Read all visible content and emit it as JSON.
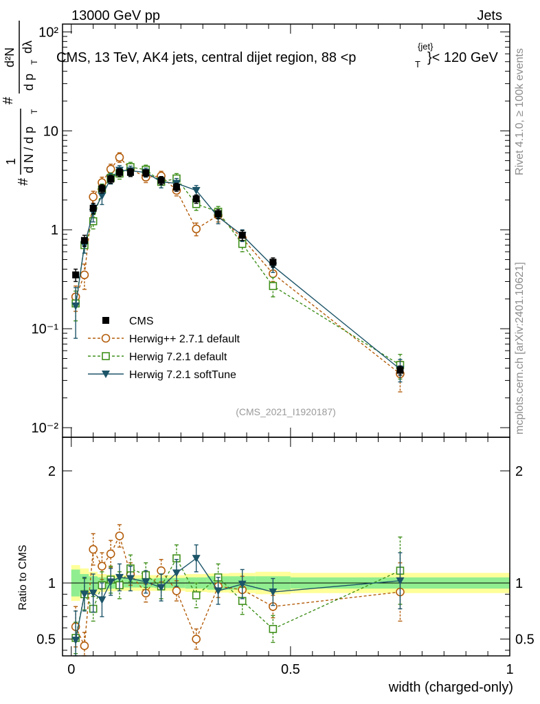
{
  "header": {
    "left": "13000 GeV pp",
    "right": "Jets",
    "title_main": "CMS, 13 TeV, AK4 jets, central dijet region, 88 <p",
    "title_sup": "{jet}",
    "title_sub": "T",
    "title_end": "}< 120 GeV"
  },
  "side_text": {
    "rivet": "Rivet 4.1.0, ≥ 100k events",
    "mcplots": "mcplots.cern.ch [arXiv:2401.10621]"
  },
  "analysis_id": "(CMS_2021_I1920187)",
  "main_ylabel": {
    "hash1": "#",
    "one": "1",
    "dn": "d N / d p",
    "dn_sub": "T",
    "hash2": "#",
    "d2n": "d²N",
    "dpt": "d p",
    "dpt_sub": "T",
    "dlam": "dλ"
  },
  "ratio_ylabel": "Ratio to CMS",
  "xlabel": "width (charged-only)",
  "colors": {
    "cms": "#000000",
    "herwigpp": "#b35c0a",
    "herwig721": "#3f8f1a",
    "softtune": "#1c5468",
    "band_inner": "#90ee90",
    "band_outer": "#ffff99"
  },
  "chart_data": [
    {
      "type": "scatter",
      "panel": "main",
      "yscale": "log",
      "xlim": [
        -0.02,
        1.0
      ],
      "ylim": [
        0.008,
        120
      ],
      "x_ticks": [
        0,
        0.5,
        1
      ],
      "y_ticks": [
        {
          "value": 0.01,
          "label": "10⁻²"
        },
        {
          "value": 0.1,
          "label": "10⁻¹"
        },
        {
          "value": 1,
          "label": "1"
        },
        {
          "value": 10,
          "label": "10"
        },
        {
          "value": 100,
          "label": "10²"
        }
      ],
      "legend_position": "center-left",
      "series": [
        {
          "name": "CMS",
          "style": "data",
          "x": [
            0.01,
            0.03,
            0.05,
            0.07,
            0.09,
            0.11,
            0.135,
            0.17,
            0.205,
            0.24,
            0.285,
            0.335,
            0.39,
            0.46,
            0.75
          ],
          "y": [
            0.35,
            0.78,
            1.65,
            2.6,
            3.25,
            3.8,
            3.8,
            3.75,
            3.15,
            2.7,
            2.05,
            1.45,
            0.88,
            0.47,
            0.038
          ],
          "err": [
            0.05,
            0.1,
            0.2,
            0.25,
            0.3,
            0.35,
            0.35,
            0.3,
            0.3,
            0.25,
            0.2,
            0.15,
            0.1,
            0.05,
            0.004
          ]
        },
        {
          "name": "Herwig++ 2.7.1 default",
          "style": "dashed-circle",
          "x": [
            0.01,
            0.03,
            0.05,
            0.07,
            0.09,
            0.11,
            0.135,
            0.17,
            0.205,
            0.24,
            0.285,
            0.335,
            0.39,
            0.46,
            0.75
          ],
          "y": [
            0.21,
            0.35,
            2.15,
            3.0,
            4.1,
            5.4,
            4.1,
            3.4,
            3.5,
            2.5,
            1.02,
            1.4,
            0.82,
            0.36,
            0.035
          ],
          "err": [
            0.06,
            0.1,
            0.3,
            0.4,
            0.5,
            0.6,
            0.5,
            0.4,
            0.4,
            0.3,
            0.15,
            0.2,
            0.12,
            0.06,
            0.012
          ]
        },
        {
          "name": "Herwig 7.2.1 default",
          "style": "dashed-square",
          "x": [
            0.01,
            0.03,
            0.05,
            0.07,
            0.09,
            0.11,
            0.135,
            0.17,
            0.205,
            0.24,
            0.285,
            0.335,
            0.39,
            0.46,
            0.75
          ],
          "y": [
            0.18,
            0.7,
            1.22,
            2.55,
            3.35,
            3.7,
            4.3,
            4.05,
            3.05,
            3.3,
            1.82,
            1.52,
            0.72,
            0.27,
            0.043
          ],
          "err": [
            0.06,
            0.12,
            0.2,
            0.35,
            0.4,
            0.45,
            0.5,
            0.45,
            0.4,
            0.4,
            0.25,
            0.2,
            0.12,
            0.06,
            0.012
          ]
        },
        {
          "name": "Herwig 7.2.1 softTune",
          "style": "solid-triangle",
          "x": [
            0.01,
            0.03,
            0.05,
            0.07,
            0.09,
            0.11,
            0.135,
            0.17,
            0.205,
            0.24,
            0.285,
            0.335,
            0.39,
            0.46,
            0.75
          ],
          "y": [
            0.17,
            0.7,
            1.5,
            2.2,
            3.3,
            4.0,
            3.95,
            3.8,
            3.05,
            2.95,
            2.5,
            1.35,
            0.88,
            0.43,
            0.039
          ],
          "err": [
            0.09,
            0.12,
            0.3,
            0.4,
            0.4,
            0.45,
            0.45,
            0.4,
            0.4,
            0.35,
            0.3,
            0.2,
            0.12,
            0.06,
            0.01
          ]
        }
      ]
    },
    {
      "type": "line",
      "panel": "ratio",
      "ylabel": "Ratio to CMS",
      "xlabel": "width (charged-only)",
      "xlim": [
        -0.02,
        1.0
      ],
      "ylim": [
        0.35,
        2.3
      ],
      "x_ticks": [
        {
          "value": 0,
          "label": "0"
        },
        {
          "value": 0.5,
          "label": "0.5"
        },
        {
          "value": 1,
          "label": "1"
        }
      ],
      "y_ticks": [
        {
          "value": 0.5,
          "label": "0.5"
        },
        {
          "value": 1,
          "label": "1"
        },
        {
          "value": 2,
          "label": "2"
        }
      ],
      "band_edges": [
        0.0,
        0.02,
        0.04,
        0.06,
        0.08,
        0.1,
        0.12,
        0.15,
        0.19,
        0.22,
        0.26,
        0.31,
        0.36,
        0.42,
        0.5,
        1.0
      ],
      "band_inner": [
        0.12,
        0.08,
        0.06,
        0.05,
        0.05,
        0.045,
        0.04,
        0.04,
        0.045,
        0.045,
        0.05,
        0.06,
        0.06,
        0.06,
        0.05
      ],
      "band_outer": [
        0.16,
        0.13,
        0.1,
        0.08,
        0.075,
        0.07,
        0.07,
        0.07,
        0.07,
        0.07,
        0.08,
        0.085,
        0.09,
        0.1,
        0.09
      ],
      "series": [
        {
          "name": "Herwig++ 2.7.1 default",
          "style": "dashed-circle",
          "x": [
            0.01,
            0.03,
            0.05,
            0.07,
            0.09,
            0.11,
            0.135,
            0.17,
            0.205,
            0.24,
            0.285,
            0.335,
            0.39,
            0.46,
            0.75
          ],
          "y": [
            0.61,
            0.44,
            1.3,
            1.15,
            1.26,
            1.42,
            1.08,
            0.91,
            1.11,
            0.93,
            0.5,
            0.97,
            0.94,
            0.79,
            0.92
          ],
          "err": [
            0.18,
            0.12,
            0.14,
            0.12,
            0.12,
            0.1,
            0.1,
            0.08,
            0.1,
            0.09,
            0.09,
            0.1,
            0.12,
            0.1,
            0.26
          ]
        },
        {
          "name": "Herwig 7.2.1 default",
          "style": "dashed-square",
          "x": [
            0.01,
            0.03,
            0.05,
            0.07,
            0.09,
            0.11,
            0.135,
            0.17,
            0.205,
            0.24,
            0.285,
            0.335,
            0.39,
            0.46,
            0.75
          ],
          "y": [
            0.51,
            0.9,
            0.77,
            0.98,
            1.03,
            0.98,
            1.13,
            1.07,
            0.97,
            1.22,
            0.89,
            1.05,
            0.84,
            0.59,
            1.11
          ],
          "err": [
            0.14,
            0.14,
            0.11,
            0.12,
            0.12,
            0.12,
            0.12,
            0.11,
            0.11,
            0.12,
            0.11,
            0.12,
            0.12,
            0.12,
            0.3
          ]
        },
        {
          "name": "Herwig 7.2.1 softTune",
          "style": "solid-triangle",
          "x": [
            0.01,
            0.03,
            0.05,
            0.07,
            0.09,
            0.11,
            0.135,
            0.17,
            0.205,
            0.24,
            0.285,
            0.335,
            0.39,
            0.46,
            0.75
          ],
          "y": [
            0.49,
            0.9,
            0.91,
            0.85,
            1.01,
            1.05,
            1.04,
            1.01,
            0.96,
            1.09,
            1.22,
            0.93,
            0.99,
            0.92,
            1.02
          ],
          "err": [
            0.26,
            0.15,
            0.17,
            0.15,
            0.12,
            0.12,
            0.11,
            0.1,
            0.12,
            0.12,
            0.12,
            0.12,
            0.13,
            0.12,
            0.25
          ]
        }
      ]
    }
  ]
}
